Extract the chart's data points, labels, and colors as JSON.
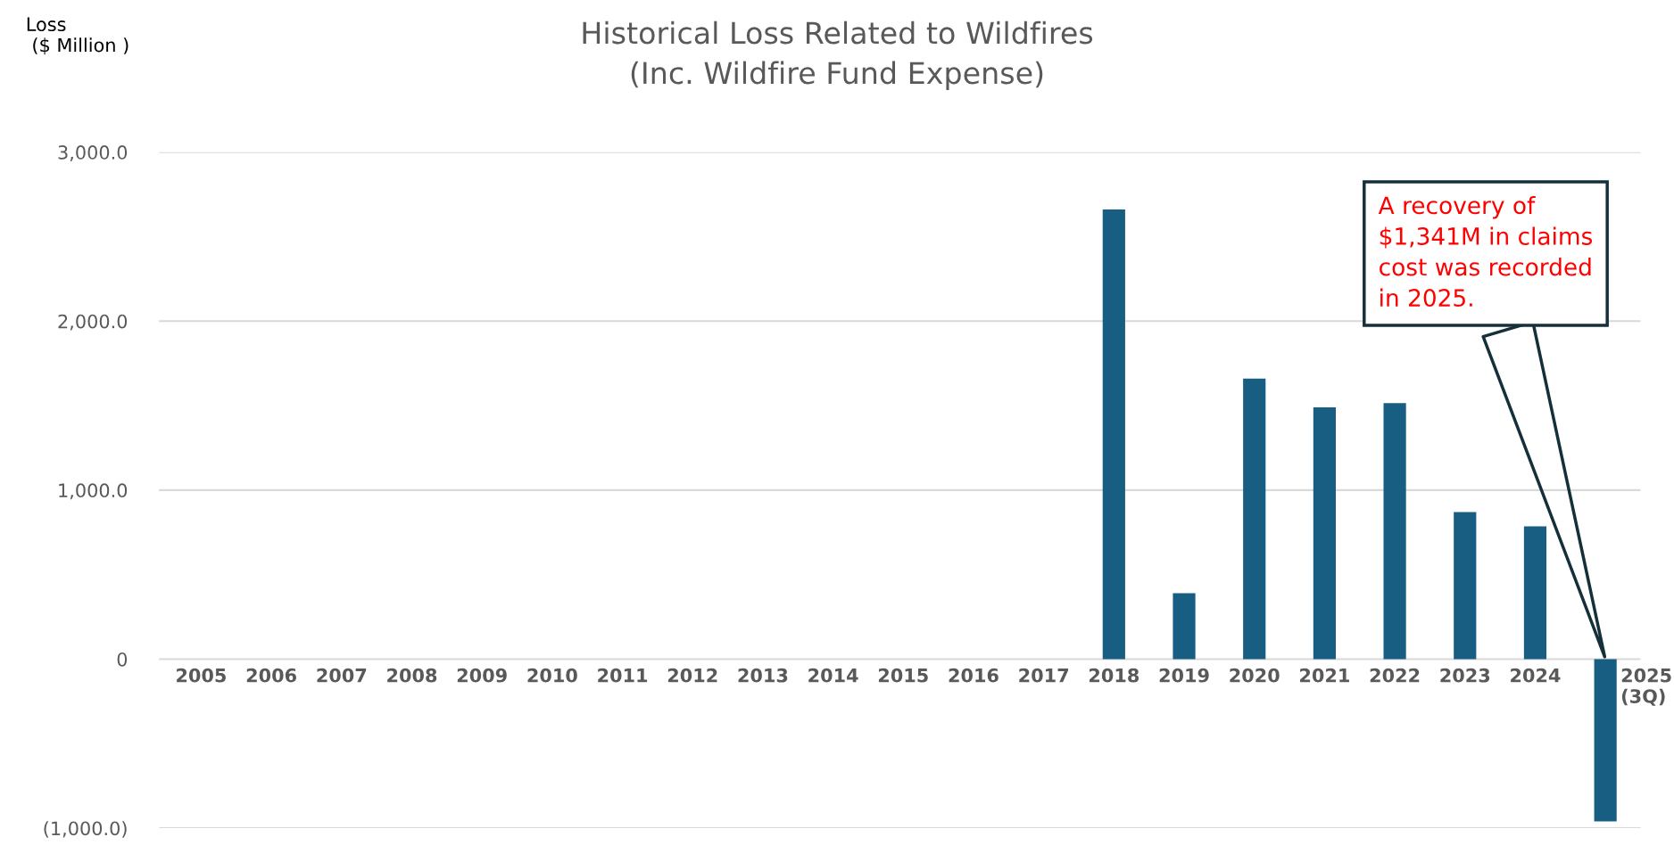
{
  "chart_data": {
    "type": "bar",
    "title": "Historical Loss Related to Wildfires\n(Inc. Wildfire Fund Expense)",
    "ylabel": "Loss\n ($ Million )",
    "categories": [
      "2005",
      "2006",
      "2007",
      "2008",
      "2009",
      "2010",
      "2011",
      "2012",
      "2013",
      "2014",
      "2015",
      "2016",
      "2017",
      "2018",
      "2019",
      "2020",
      "2021",
      "2022",
      "2023",
      "2024",
      "2025\n(3Q)"
    ],
    "values": [
      null,
      null,
      null,
      null,
      null,
      null,
      null,
      null,
      null,
      null,
      null,
      null,
      null,
      2660,
      390,
      1660,
      1490,
      1515,
      870,
      785,
      -960
    ],
    "color": "#175e82",
    "ylim": [
      -1000,
      3000
    ],
    "yticks": [
      {
        "value": 3000,
        "label": "3,000.0"
      },
      {
        "value": 2000,
        "label": "2,000.0"
      },
      {
        "value": 1000,
        "label": "1,000.0"
      },
      0,
      {
        "value": -1000,
        "label": "(1,000.0)"
      }
    ],
    "grid": "y",
    "annotations": [
      "A recovery of\n$1,341M in claims\ncost was recorded\nin 2025."
    ]
  }
}
